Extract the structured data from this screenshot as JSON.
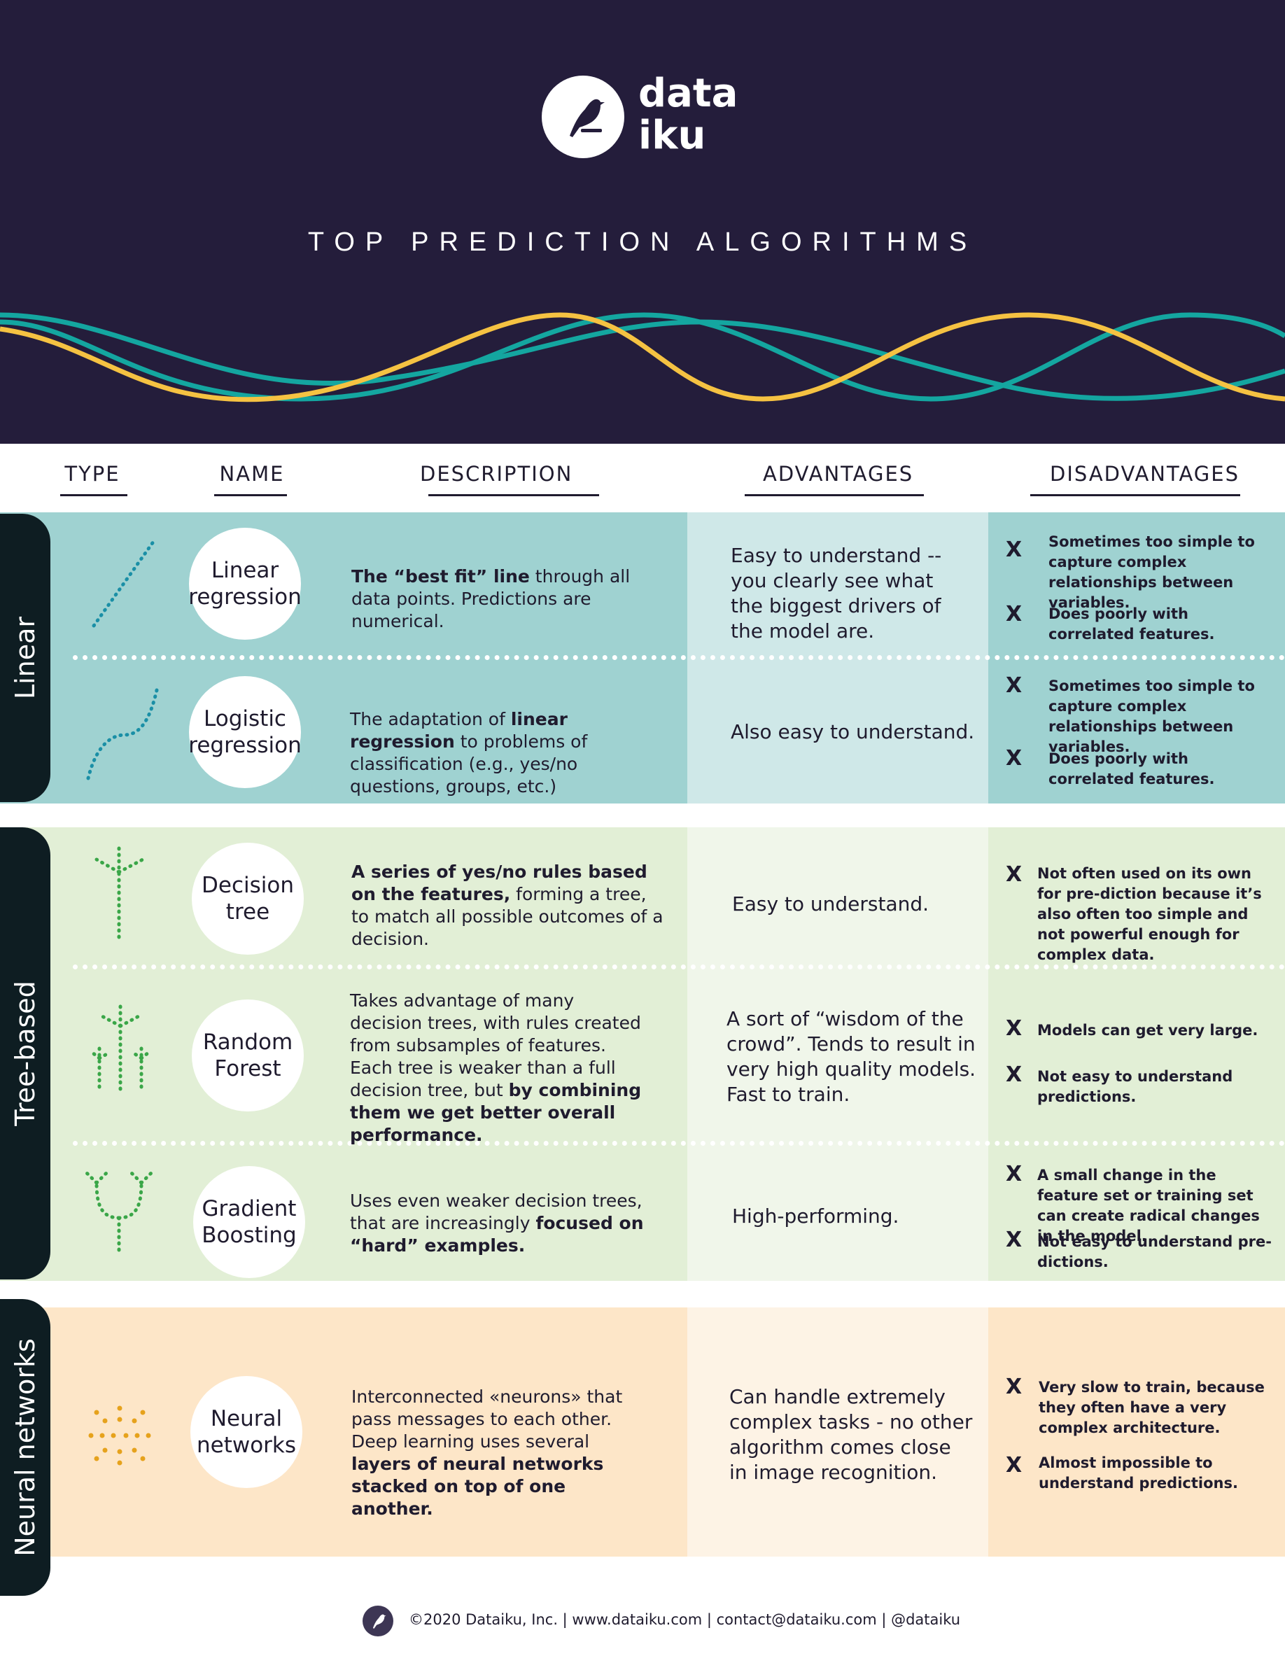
{
  "brand": {
    "logo_line1": "data",
    "logo_line2": "iku"
  },
  "title": "TOP PREDICTION ALGORITHMS",
  "columns": {
    "type": "TYPE",
    "name": "NAME",
    "description": "DESCRIPTION",
    "advantages": "ADVANTAGES",
    "disadvantages": "DISADVANTAGES"
  },
  "groups": {
    "linear": "Linear",
    "tree": "Tree-based",
    "neural": "Neural  networks"
  },
  "colors": {
    "header_bg": "#241d3b",
    "wave_yellow": "#f5c242",
    "wave_teal": "#14a6a0",
    "linear_bg": "#9fd2d1",
    "linear_adv_bg": "#cfe8e8",
    "tree_bg": "#e2efd6",
    "tree_adv_bg": "#f0f6ea",
    "neural_bg": "#fde6c8",
    "neural_adv_bg": "#fdf3e5",
    "label_bg": "#0e1d22"
  },
  "rows": {
    "linear_regression": {
      "name_line1": "Linear",
      "name_line2": "regression",
      "desc_b1": "The “best fit” line",
      "desc_t1": " through all data points. Predictions are numerical.",
      "advantage": "Easy to understand -- you clearly see what the biggest drivers of the model are.",
      "dis1": "Sometimes too simple to capture complex relationships between variables.",
      "dis2": "Does poorly with correlated features."
    },
    "logistic_regression": {
      "name_line1": "Logistic",
      "name_line2": "regression",
      "desc_t1": "The adaptation of ",
      "desc_b1": "linear regression",
      "desc_t2": " to problems of classification (e.g., yes/no questions, groups, etc.)",
      "advantage": "Also easy to understand.",
      "dis1": "Sometimes too simple to capture complex relationships between variables.",
      "dis2": "Does poorly with correlated features."
    },
    "decision_tree": {
      "name_line1": "Decision",
      "name_line2": "tree",
      "desc_b1": "A series of yes/no rules based on the features,",
      "desc_t1": " forming a tree, to match all possible outcomes of a decision.",
      "advantage": "Easy to understand.",
      "dis1": "Not often used on its own for pre-diction because it’s also often too simple  and not powerful enough for complex data."
    },
    "random_forest": {
      "name_line1": "Random",
      "name_line2": "Forest",
      "desc_t1": "Takes advantage of many decision trees, with rules created from subsamples of features. Each tree is weaker than a full decision tree, but ",
      "desc_b1": "by combining them we get better overall performance.",
      "advantage": "A sort of “wisdom of the crowd”. Tends to result in very high quality models. Fast to train.",
      "dis1": "Models can get very large.",
      "dis2": "Not easy to understand predictions."
    },
    "gradient_boosting": {
      "name_line1": "Gradient",
      "name_line2": "Boosting",
      "desc_t1": "Uses even weaker decision trees, that are increasingly ",
      "desc_b1": "focused on “hard” examples.",
      "advantage": "High-performing.",
      "dis1": "A small change in the feature set or training set can create radical changes in the model.",
      "dis2": "Not easy to understand pre-dictions."
    },
    "neural_networks": {
      "name_line1": "Neural",
      "name_line2": "networks",
      "desc_t1": "Interconnected «neurons» that pass messages to each other. Deep learning uses several ",
      "desc_b1": "layers of neural networks stacked on top of one another.",
      "advantage": "Can handle extremely complex tasks - no other algorithm comes close in image recognition.",
      "dis1": "Very slow to train, because they often have a very complex architecture.",
      "dis2": "Almost impossible to understand predictions."
    }
  },
  "x_mark": "X",
  "footer": "©2020 Dataiku, Inc. | www.dataiku.com | contact@dataiku.com | @dataiku"
}
